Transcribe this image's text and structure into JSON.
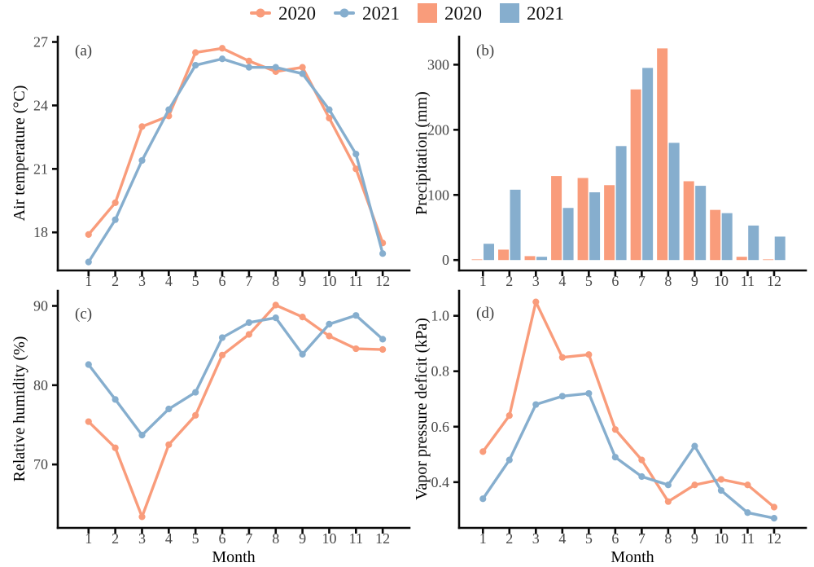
{
  "colors": {
    "year2020": "#F99C7B",
    "year2021": "#86AECE"
  },
  "legend": {
    "items": [
      {
        "type": "line",
        "label": "2020",
        "color_key": "year2020"
      },
      {
        "type": "line",
        "label": "2021",
        "color_key": "year2021"
      },
      {
        "type": "rect",
        "label": "2020",
        "color_key": "year2020"
      },
      {
        "type": "rect",
        "label": "2021",
        "color_key": "year2021"
      }
    ]
  },
  "chart_data": [
    {
      "id": "a",
      "type": "line",
      "panel_label": "(a)",
      "ylabel": "Air temperature (°C)",
      "xlabel": "",
      "x": [
        1,
        2,
        3,
        4,
        5,
        6,
        7,
        8,
        9,
        10,
        11,
        12
      ],
      "yticks": [
        18,
        21,
        24,
        27
      ],
      "ylim": [
        16.2,
        27.25
      ],
      "legend_position": "top",
      "grid": false,
      "series": [
        {
          "name": "2020",
          "color": "#F99C7B",
          "values": [
            17.9,
            19.4,
            23.0,
            23.5,
            26.5,
            26.7,
            26.1,
            25.6,
            25.8,
            23.4,
            21.0,
            17.5
          ]
        },
        {
          "name": "2021",
          "color": "#86AECE",
          "values": [
            16.6,
            18.6,
            21.4,
            23.8,
            25.9,
            26.2,
            25.8,
            25.8,
            25.5,
            23.8,
            21.7,
            17.0
          ]
        }
      ]
    },
    {
      "id": "b",
      "type": "bar",
      "panel_label": "(b)",
      "ylabel": "Precipitation (mm)",
      "xlabel": "",
      "x": [
        1,
        2,
        3,
        4,
        5,
        6,
        7,
        8,
        9,
        10,
        11,
        12
      ],
      "yticks": [
        0,
        100,
        200,
        300
      ],
      "ylim": [
        -16,
        343
      ],
      "grid": false,
      "series": [
        {
          "name": "2020",
          "color": "#F99C7B",
          "values": [
            1,
            16,
            6,
            129,
            126,
            115,
            262,
            325,
            121,
            77,
            5,
            1
          ]
        },
        {
          "name": "2021",
          "color": "#86AECE",
          "values": [
            25,
            108,
            5,
            80,
            104,
            175,
            295,
            180,
            114,
            72,
            53,
            36
          ]
        }
      ]
    },
    {
      "id": "c",
      "type": "line",
      "panel_label": "(c)",
      "ylabel": "Relative humidity (%)",
      "xlabel": "Month",
      "x": [
        1,
        2,
        3,
        4,
        5,
        6,
        7,
        8,
        9,
        10,
        11,
        12
      ],
      "yticks": [
        70,
        80,
        90
      ],
      "ylim": [
        62.0,
        91.9
      ],
      "grid": false,
      "series": [
        {
          "name": "2020",
          "color": "#F99C7B",
          "values": [
            75.4,
            72.1,
            63.4,
            72.5,
            76.2,
            83.8,
            86.4,
            90.1,
            88.6,
            86.2,
            84.6,
            84.5
          ]
        },
        {
          "name": "2021",
          "color": "#86AECE",
          "values": [
            82.6,
            78.2,
            73.7,
            77.0,
            79.1,
            86.0,
            87.9,
            88.5,
            83.9,
            87.7,
            88.8,
            85.8
          ]
        }
      ]
    },
    {
      "id": "d",
      "type": "line",
      "panel_label": "(d)",
      "ylabel": "Vapor pressure deficit (kPa)",
      "xlabel": "Month",
      "x": [
        1,
        2,
        3,
        4,
        5,
        6,
        7,
        8,
        9,
        10,
        11,
        12
      ],
      "yticks": [
        0.4,
        0.6,
        0.8,
        1.0
      ],
      "ytick_labels": [
        "0.4",
        "0.6",
        "0.8",
        "1.0"
      ],
      "ylim": [
        0.235,
        1.09
      ],
      "grid": false,
      "series": [
        {
          "name": "2020",
          "color": "#F99C7B",
          "values": [
            0.51,
            0.64,
            1.05,
            0.85,
            0.86,
            0.59,
            0.48,
            0.33,
            0.39,
            0.41,
            0.39,
            0.31
          ]
        },
        {
          "name": "2021",
          "color": "#86AECE",
          "values": [
            0.34,
            0.48,
            0.68,
            0.71,
            0.72,
            0.49,
            0.42,
            0.39,
            0.53,
            0.37,
            0.29,
            0.27
          ]
        }
      ]
    }
  ]
}
